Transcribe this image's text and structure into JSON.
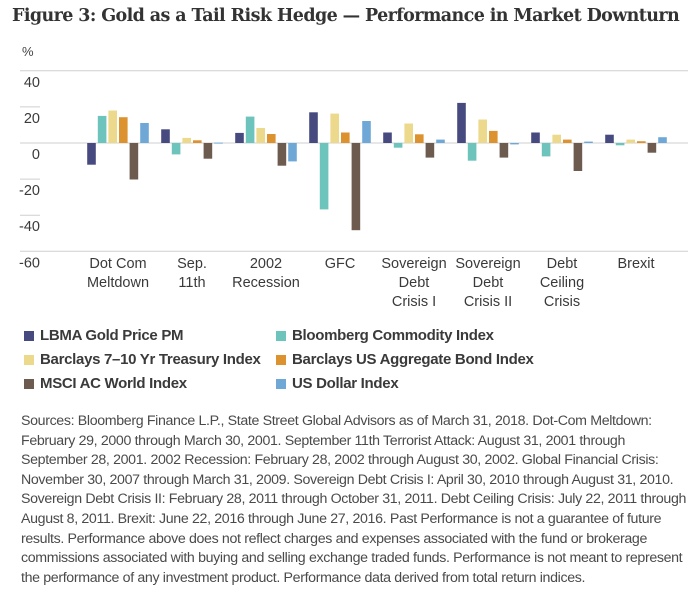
{
  "title": "Figure 3: Gold as a Tail Risk Hedge — Performance in Market Downturn",
  "chart_data": {
    "type": "bar",
    "title": "Figure 3: Gold as a Tail Risk Hedge — Performance in Market Downturn",
    "ylabel": "%",
    "xlabel": "",
    "ylim": [
      -60,
      40
    ],
    "yticks": [
      40,
      20,
      0,
      -20,
      -40,
      -60
    ],
    "ytick_labels": [
      "40",
      "20",
      "0",
      "-20",
      "-40",
      "-60"
    ],
    "grid": false,
    "legend_position": "bottom",
    "categories": [
      [
        "Dot Com",
        "Meltdown"
      ],
      [
        "Sep.",
        "11th"
      ],
      [
        "2002",
        "Recession"
      ],
      [
        "GFC"
      ],
      [
        "Sovereign",
        "Debt",
        "Crisis I"
      ],
      [
        "Sovereign",
        "Debt",
        "Crisis II"
      ],
      [
        "Debt",
        "Ceiling",
        "Crisis"
      ],
      [
        "Brexit"
      ]
    ],
    "series": [
      {
        "name": "LBMA Gold Price PM",
        "color": "#464a7f",
        "values": [
          -12,
          7.6,
          5.6,
          17,
          5.8,
          22.2,
          5.8,
          4.6
        ]
      },
      {
        "name": "Bloomberg Commodity Index",
        "color": "#6cc4bd",
        "values": [
          15,
          -6.3,
          14.6,
          -36.8,
          -2.6,
          -9.8,
          -7.4,
          -1.3
        ]
      },
      {
        "name": "Barclays 7–10 Yr Treasury Index",
        "color": "#ecd98b",
        "values": [
          18,
          2.8,
          8.3,
          16.3,
          10.8,
          13,
          4.6,
          1.9
        ]
      },
      {
        "name": "Barclays US Aggregate Bond Index",
        "color": "#dd9230",
        "values": [
          14.3,
          1.5,
          5,
          5.8,
          4.8,
          6.7,
          1.9,
          1
        ]
      },
      {
        "name": "MSCI AC World Index",
        "color": "#6e5b4f",
        "values": [
          -20.2,
          -8.7,
          -12.6,
          -48.3,
          -8.1,
          -8.1,
          -15.5,
          -5.4
        ]
      },
      {
        "name": "US Dollar Index",
        "color": "#6fa8d6",
        "values": [
          11.1,
          0.2,
          -10.2,
          12.2,
          1.9,
          -0.8,
          0.8,
          3.2
        ]
      }
    ]
  },
  "legend": [
    {
      "label": "LBMA Gold Price PM",
      "color": "#464a7f"
    },
    {
      "label": "Bloomberg Commodity Index",
      "color": "#6cc4bd"
    },
    {
      "label": "Barclays 7–10 Yr Treasury Index",
      "color": "#ecd98b"
    },
    {
      "label": "Barclays US Aggregate Bond Index",
      "color": "#dd9230"
    },
    {
      "label": "MSCI AC World Index",
      "color": "#6e5b4f"
    },
    {
      "label": "US Dollar Index",
      "color": "#6fa8d6"
    }
  ],
  "notes": "Sources: Bloomberg Finance L.P., State Street Global Advisors as of March 31, 2018. Dot-Com Meltdown: February 29, 2000 through March 30, 2001. September 11th Terrorist Attack: August 31, 2001 through September 28, 2001. 2002 Recession: February 28, 2002 through August 30, 2002. Global Financial Crisis: November 30, 2007 through March 31, 2009. Sovereign Debt Crisis I: April 30, 2010 through August 31, 2010. Sovereign Debt Crisis II: February 28, 2011 through October 31, 2011. Debt Ceiling Crisis: July 22, 2011 through August 8, 2011. Brexit: June 22, 2016 through June 27, 2016. Past Performance is not a guarantee of future results. Performance above does not reflect charges and expenses associated with the fund or brokerage commissions associated with buying and selling exchange traded funds. Performance is not meant to represent the performance of any investment product. Performance data derived from total return indices."
}
